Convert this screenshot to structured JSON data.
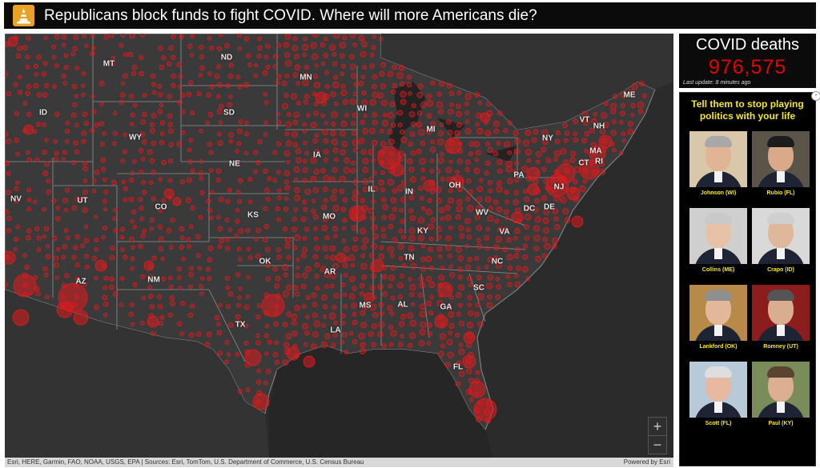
{
  "header": {
    "title": "Republicans block funds to fight COVID. Where will more Americans die?",
    "logo_icon": "cone-logo-icon"
  },
  "map": {
    "state_labels": [
      {
        "abbr": "MT"
      },
      {
        "abbr": "ND"
      },
      {
        "abbr": "MN"
      },
      {
        "abbr": "ID"
      },
      {
        "abbr": "SD"
      },
      {
        "abbr": "WI"
      },
      {
        "abbr": "MI"
      },
      {
        "abbr": "WY"
      },
      {
        "abbr": "IA"
      },
      {
        "abbr": "NE"
      },
      {
        "abbr": "NV"
      },
      {
        "abbr": "UT"
      },
      {
        "abbr": "CO"
      },
      {
        "abbr": "IL"
      },
      {
        "abbr": "IN"
      },
      {
        "abbr": "OH"
      },
      {
        "abbr": "PA"
      },
      {
        "abbr": "NY"
      },
      {
        "abbr": "VT"
      },
      {
        "abbr": "NH"
      },
      {
        "abbr": "ME"
      },
      {
        "abbr": "MA"
      },
      {
        "abbr": "CT"
      },
      {
        "abbr": "RI"
      },
      {
        "abbr": "NJ"
      },
      {
        "abbr": "KS"
      },
      {
        "abbr": "MO"
      },
      {
        "abbr": "KY"
      },
      {
        "abbr": "WV"
      },
      {
        "abbr": "VA"
      },
      {
        "abbr": "DC"
      },
      {
        "abbr": "DE"
      },
      {
        "abbr": "OK"
      },
      {
        "abbr": "AR"
      },
      {
        "abbr": "TN"
      },
      {
        "abbr": "NC"
      },
      {
        "abbr": "AZ"
      },
      {
        "abbr": "NM"
      },
      {
        "abbr": "SC"
      },
      {
        "abbr": "MS"
      },
      {
        "abbr": "AL"
      },
      {
        "abbr": "GA"
      },
      {
        "abbr": "TX"
      },
      {
        "abbr": "LA"
      },
      {
        "abbr": "FL"
      }
    ],
    "zoom_in_label": "+",
    "zoom_out_label": "−",
    "bubble_color": "#e31a1c"
  },
  "attribution": {
    "sources": "Esri, HERE, Garmin, FAO, NOAA, USGS, EPA | Sources: Esri, TomTom, U.S. Department of Commerce, U.S. Census Bureau",
    "powered_by": "Powered by Esri"
  },
  "counter": {
    "title": "COVID deaths",
    "value": "976,575",
    "last_update": "Last update: 8 minutes ago",
    "value_color": "#e60000"
  },
  "panel": {
    "heading_line1": "Tell them to stop playing",
    "heading_line2": "politics with your life",
    "heading_color": "#f5e82c",
    "senators": [
      {
        "label": "Johnson (WI)"
      },
      {
        "label": "Rubio (FL)"
      },
      {
        "label": "Collins (ME)"
      },
      {
        "label": "Crapo (ID)"
      },
      {
        "label": "Lankford (OK)"
      },
      {
        "label": "Romney (UT)"
      },
      {
        "label": "Scott (FL)"
      },
      {
        "label": "Paul (KY)"
      }
    ]
  }
}
